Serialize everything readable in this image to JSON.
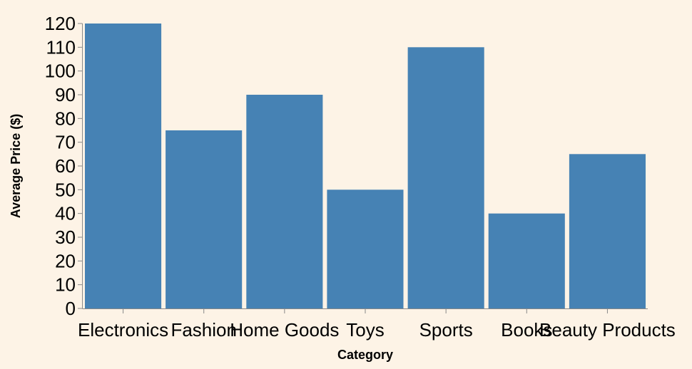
{
  "chart_data": {
    "type": "bar",
    "categories": [
      "Electronics",
      "Fashion",
      "Home Goods",
      "Toys",
      "Sports",
      "Books",
      "Beauty Products"
    ],
    "values": [
      120,
      75,
      90,
      50,
      110,
      40,
      65
    ],
    "xlabel": "Category",
    "ylabel": "Average Price ($)",
    "ylim": [
      0,
      120
    ],
    "yticks": [
      0,
      10,
      20,
      30,
      40,
      50,
      60,
      70,
      80,
      90,
      100,
      110,
      120
    ],
    "grid": false,
    "legend": "none",
    "colors": {
      "bar": "#4682b4",
      "axis": "#888888",
      "background": "#fdf3e6"
    }
  }
}
